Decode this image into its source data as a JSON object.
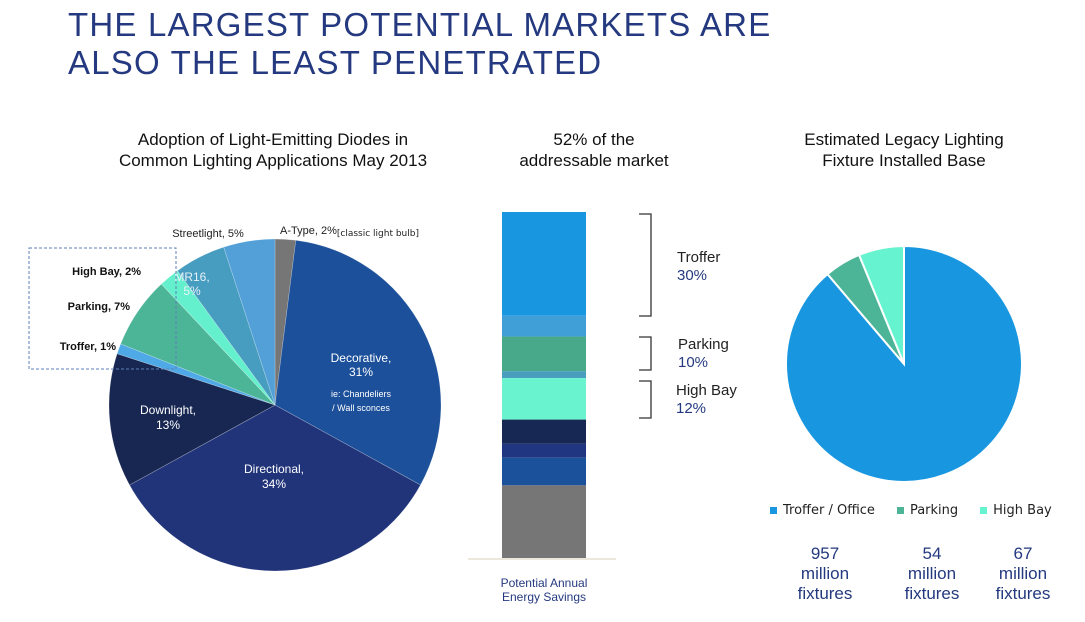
{
  "page": {
    "title_line1": "THE LARGEST POTENTIAL MARKETS ARE",
    "title_line2": "ALSO THE LEAST PENETRATED"
  },
  "chart_data": [
    {
      "type": "pie",
      "title_line1": "Adoption of Light-Emitting Diodes in",
      "title_line2": "Common Lighting Applications May 2013",
      "start": "top",
      "direction": "clockwise",
      "slices": [
        {
          "name": "A-Type",
          "value": 2,
          "label": "A-Type, 2%",
          "note": "[classic light bulb]",
          "color": "#767676"
        },
        {
          "name": "Decorative",
          "value": 31,
          "label_line1": "Decorative,",
          "label_line2": "31%",
          "note_line1": "ie: Chandeliers",
          "note_line2": "/ Wall sconces",
          "color": "#1c509a"
        },
        {
          "name": "Directional",
          "value": 34,
          "label_line1": "Directional,",
          "label_line2": "34%",
          "color": "#213479"
        },
        {
          "name": "Downlight",
          "value": 13,
          "label_line1": "Downlight,",
          "label_line2": "13%",
          "color": "#172752"
        },
        {
          "name": "Troffer",
          "value": 1,
          "label": "Troffer, 1%",
          "color": "#4ea9e6"
        },
        {
          "name": "Parking",
          "value": 7,
          "label": "Parking, 7%",
          "color": "#4db597"
        },
        {
          "name": "High Bay",
          "value": 2,
          "label": "High Bay, 2%",
          "color": "#64f0cd"
        },
        {
          "name": "MR16",
          "value": 5,
          "label_line1": "MR16,",
          "label_line2": "5%",
          "color": "#469dbf"
        },
        {
          "name": "Streetlight",
          "value": 5,
          "label": "Streetlight, 5%",
          "color": "#53a0d8"
        }
      ],
      "highlight_box": "dashed box around Troffer, Parking, High Bay"
    },
    {
      "type": "bar",
      "subtype": "stacked-100",
      "title_line1": "52% of the",
      "title_line2": "addressable market",
      "xlabel_line1": "Potential Annual",
      "xlabel_line2": "Energy Savings",
      "segments_top_to_bottom": [
        {
          "name": "Troffer",
          "value": 30,
          "color": "#1897e0"
        },
        {
          "name": "Streetlight",
          "value": 6,
          "color": "#3f9fd6"
        },
        {
          "name": "Parking",
          "value": 10,
          "color": "#48a98a"
        },
        {
          "name": "MR16",
          "value": 2,
          "color": "#4a9ebd"
        },
        {
          "name": "High Bay",
          "value": 12,
          "color": "#69f4cf"
        },
        {
          "name": "Downlight",
          "value": 7,
          "color": "#162853"
        },
        {
          "name": "Directional",
          "value": 4,
          "color": "#203680"
        },
        {
          "name": "Decorative",
          "value": 8,
          "color": "#1b519b"
        },
        {
          "name": "A-Type",
          "value": 21,
          "color": "#767676"
        }
      ],
      "brackets": [
        {
          "name": "Troffer",
          "value_label": "30%"
        },
        {
          "name": "Parking",
          "value_label": "10%"
        },
        {
          "name": "High Bay",
          "value_label": "12%"
        }
      ]
    },
    {
      "type": "pie",
      "title_line1": "Estimated Legacy Lighting",
      "title_line2": "Fixture Installed Base",
      "start": "top",
      "direction": "clockwise",
      "units": "million fixtures",
      "slices": [
        {
          "name": "Troffer / Office",
          "value": 957,
          "color": "#1897e0"
        },
        {
          "name": "Parking",
          "value": 54,
          "color": "#4db597"
        },
        {
          "name": "High Bay",
          "value": 67,
          "color": "#66f3cf"
        }
      ],
      "legend": [
        "Troffer / Office",
        "Parking",
        "High Bay"
      ],
      "legend_position": "bottom",
      "stats": [
        {
          "value": "957",
          "unit1": "million",
          "unit2": "fixtures"
        },
        {
          "value": "54",
          "unit1": "million",
          "unit2": "fixtures"
        },
        {
          "value": "67",
          "unit1": "million",
          "unit2": "fixtures"
        }
      ]
    }
  ]
}
